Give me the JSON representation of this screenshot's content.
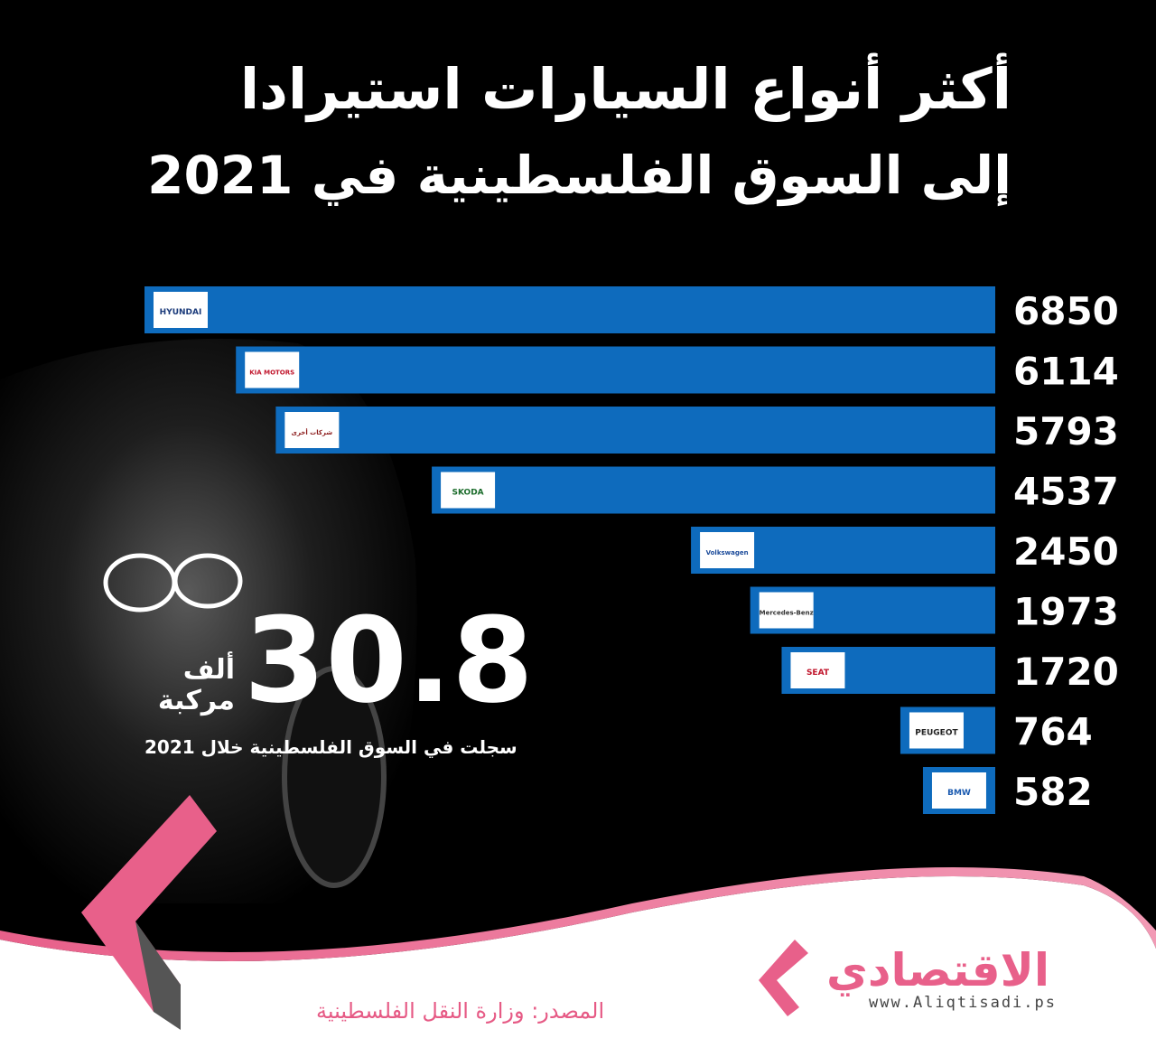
{
  "title_line1": "أكثر أنواع السيارات استيرادا",
  "title_line2": "إلى السوق الفلسطينية في 2021",
  "highlight": {
    "value": "30.8",
    "unit_line1": "ألف",
    "unit_line2": "مركبة",
    "caption": "سجلت في السوق الفلسطينية خلال 2021"
  },
  "source": "المصدر: وزارة النقل الفلسطينية",
  "brand": {
    "name": "الاقتصادي",
    "url": "www.Aliqtisadi.ps"
  },
  "colors": {
    "bar": "#0e6bbd",
    "accent": "#e8608a",
    "background": "#000000"
  },
  "chart_data": {
    "type": "bar",
    "orientation": "horizontal",
    "categories": [
      "HYUNDAI",
      "KIA MOTORS",
      "شركات أخرى",
      "SKODA",
      "Volkswagen",
      "Mercedes-Benz",
      "SEAT",
      "PEUGEOT",
      "BMW"
    ],
    "values": [
      6850,
      6114,
      5793,
      4537,
      2450,
      1973,
      1720,
      764,
      582
    ],
    "value_labels": [
      "6850",
      "6114",
      "5793",
      "4537",
      "2450",
      "1973",
      "1720",
      "764",
      "582"
    ],
    "xlim": [
      0,
      6850
    ],
    "grid": false
  }
}
